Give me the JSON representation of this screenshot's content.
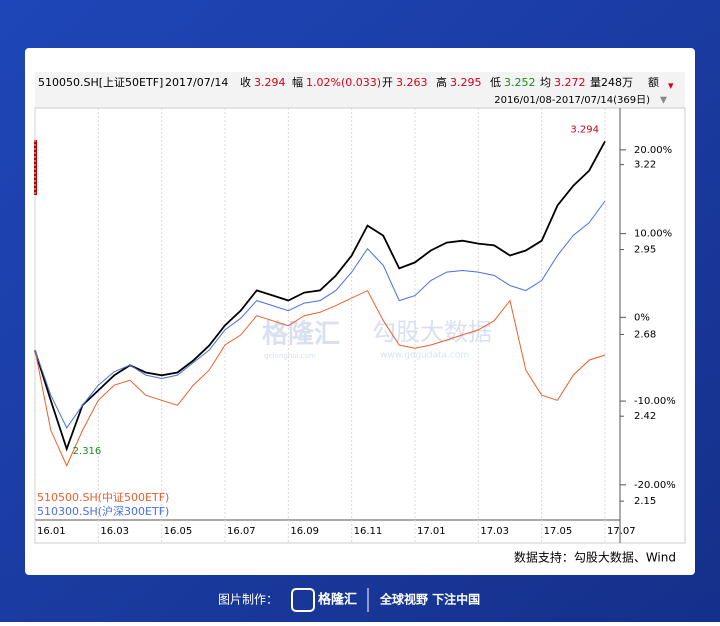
{
  "header": {
    "date": "2017/07/14",
    "fields": [
      {
        "label": "收",
        "value": "3.294",
        "color": "#d0021b"
      },
      {
        "label": "幅",
        "value": "1.02%(0.033)",
        "color": "#d0021b"
      },
      {
        "label": "开",
        "value": "3.263",
        "color": "#d0021b"
      },
      {
        "label": "高",
        "value": "3.295",
        "color": "#d0021b"
      },
      {
        "label": "低",
        "value": "3.252",
        "color": "#1a8a1a"
      },
      {
        "label": "均",
        "value": "3.272",
        "color": "#d0021b"
      }
    ],
    "volume": "量248万",
    "amount": "额",
    "range": "2016/01/08-2017/07/14(369日)"
  },
  "chart_data": {
    "type": "line",
    "categories": [
      "16.01",
      null,
      null,
      null,
      "16.03",
      null,
      null,
      null,
      "16.05",
      null,
      null,
      null,
      "16.07",
      null,
      null,
      null,
      "16.09",
      null,
      null,
      null,
      "16.11",
      null,
      null,
      null,
      "17.01",
      null,
      null,
      null,
      "17.03",
      null,
      null,
      null,
      "17.05",
      null,
      null,
      null,
      "17.07"
    ],
    "series": [
      {
        "name": "510050.SH[上证50ETF]",
        "color": "#000000",
        "axis": "y2",
        "values": [
          2.629,
          2.47,
          2.316,
          2.455,
          2.502,
          2.55,
          2.582,
          2.559,
          2.55,
          2.559,
          2.597,
          2.645,
          2.709,
          2.756,
          2.82,
          2.804,
          2.788,
          2.813,
          2.82,
          2.867,
          2.931,
          3.026,
          2.994,
          2.89,
          2.909,
          2.947,
          2.972,
          2.978,
          2.969,
          2.963,
          2.931,
          2.947,
          2.978,
          3.09,
          3.153,
          3.201,
          3.294
        ]
      },
      {
        "name": "510500.SH(中证500ETF)",
        "color": "#e8602c",
        "values": [
          -3.9,
          -13.5,
          -17.7,
          -13.5,
          -9.9,
          -8.1,
          -7.5,
          -9.3,
          -9.9,
          -10.5,
          -8.1,
          -6.3,
          -3.3,
          -2.1,
          0.2,
          -0.4,
          -1.0,
          0.2,
          0.6,
          1.4,
          2.3,
          3.2,
          -0.4,
          -3.3,
          -3.7,
          -3.3,
          -2.7,
          -2.1,
          -1.5,
          -0.4,
          2.0,
          -6.3,
          -9.3,
          -9.9,
          -6.9,
          -5.1,
          -4.5
        ]
      },
      {
        "name": "510300.SH(沪深300ETF)",
        "color": "#4a6fe0",
        "values": [
          -3.9,
          -9.3,
          -13.2,
          -10.5,
          -8.1,
          -6.5,
          -5.7,
          -6.9,
          -7.3,
          -6.9,
          -5.4,
          -3.9,
          -1.5,
          -0.1,
          2.0,
          1.4,
          0.8,
          1.7,
          2.0,
          3.2,
          5.4,
          8.2,
          6.2,
          2.0,
          2.6,
          4.4,
          5.4,
          5.6,
          5.4,
          5.0,
          3.8,
          3.2,
          4.4,
          7.4,
          9.8,
          11.3,
          13.9
        ]
      }
    ],
    "annotations": [
      "3.294",
      "2.316"
    ],
    "ylim": [
      -24.2,
      25
    ],
    "yticks": [
      {
        "value": 20,
        "label": "20.00%"
      },
      {
        "value": 10,
        "label": "10.00%"
      },
      {
        "value": 0,
        "label": "0%"
      },
      {
        "value": -10,
        "label": "-10.00%"
      },
      {
        "value": -20,
        "label": "-20.00%"
      }
    ],
    "y2lim": [
      2.09,
      3.4
    ],
    "y2ticks": [
      3.22,
      2.95,
      2.68,
      2.42,
      2.15
    ],
    "grid": true,
    "watermarks": [
      "格隆汇",
      "gelonghui.com",
      "勾股大数据",
      "www.gogudata.com"
    ],
    "source": "数据支持：勾股大数据、Wind"
  },
  "footer": {
    "made_by": "图片制作：",
    "brand": "格隆汇",
    "slogan": "全球视野 下注中国"
  }
}
